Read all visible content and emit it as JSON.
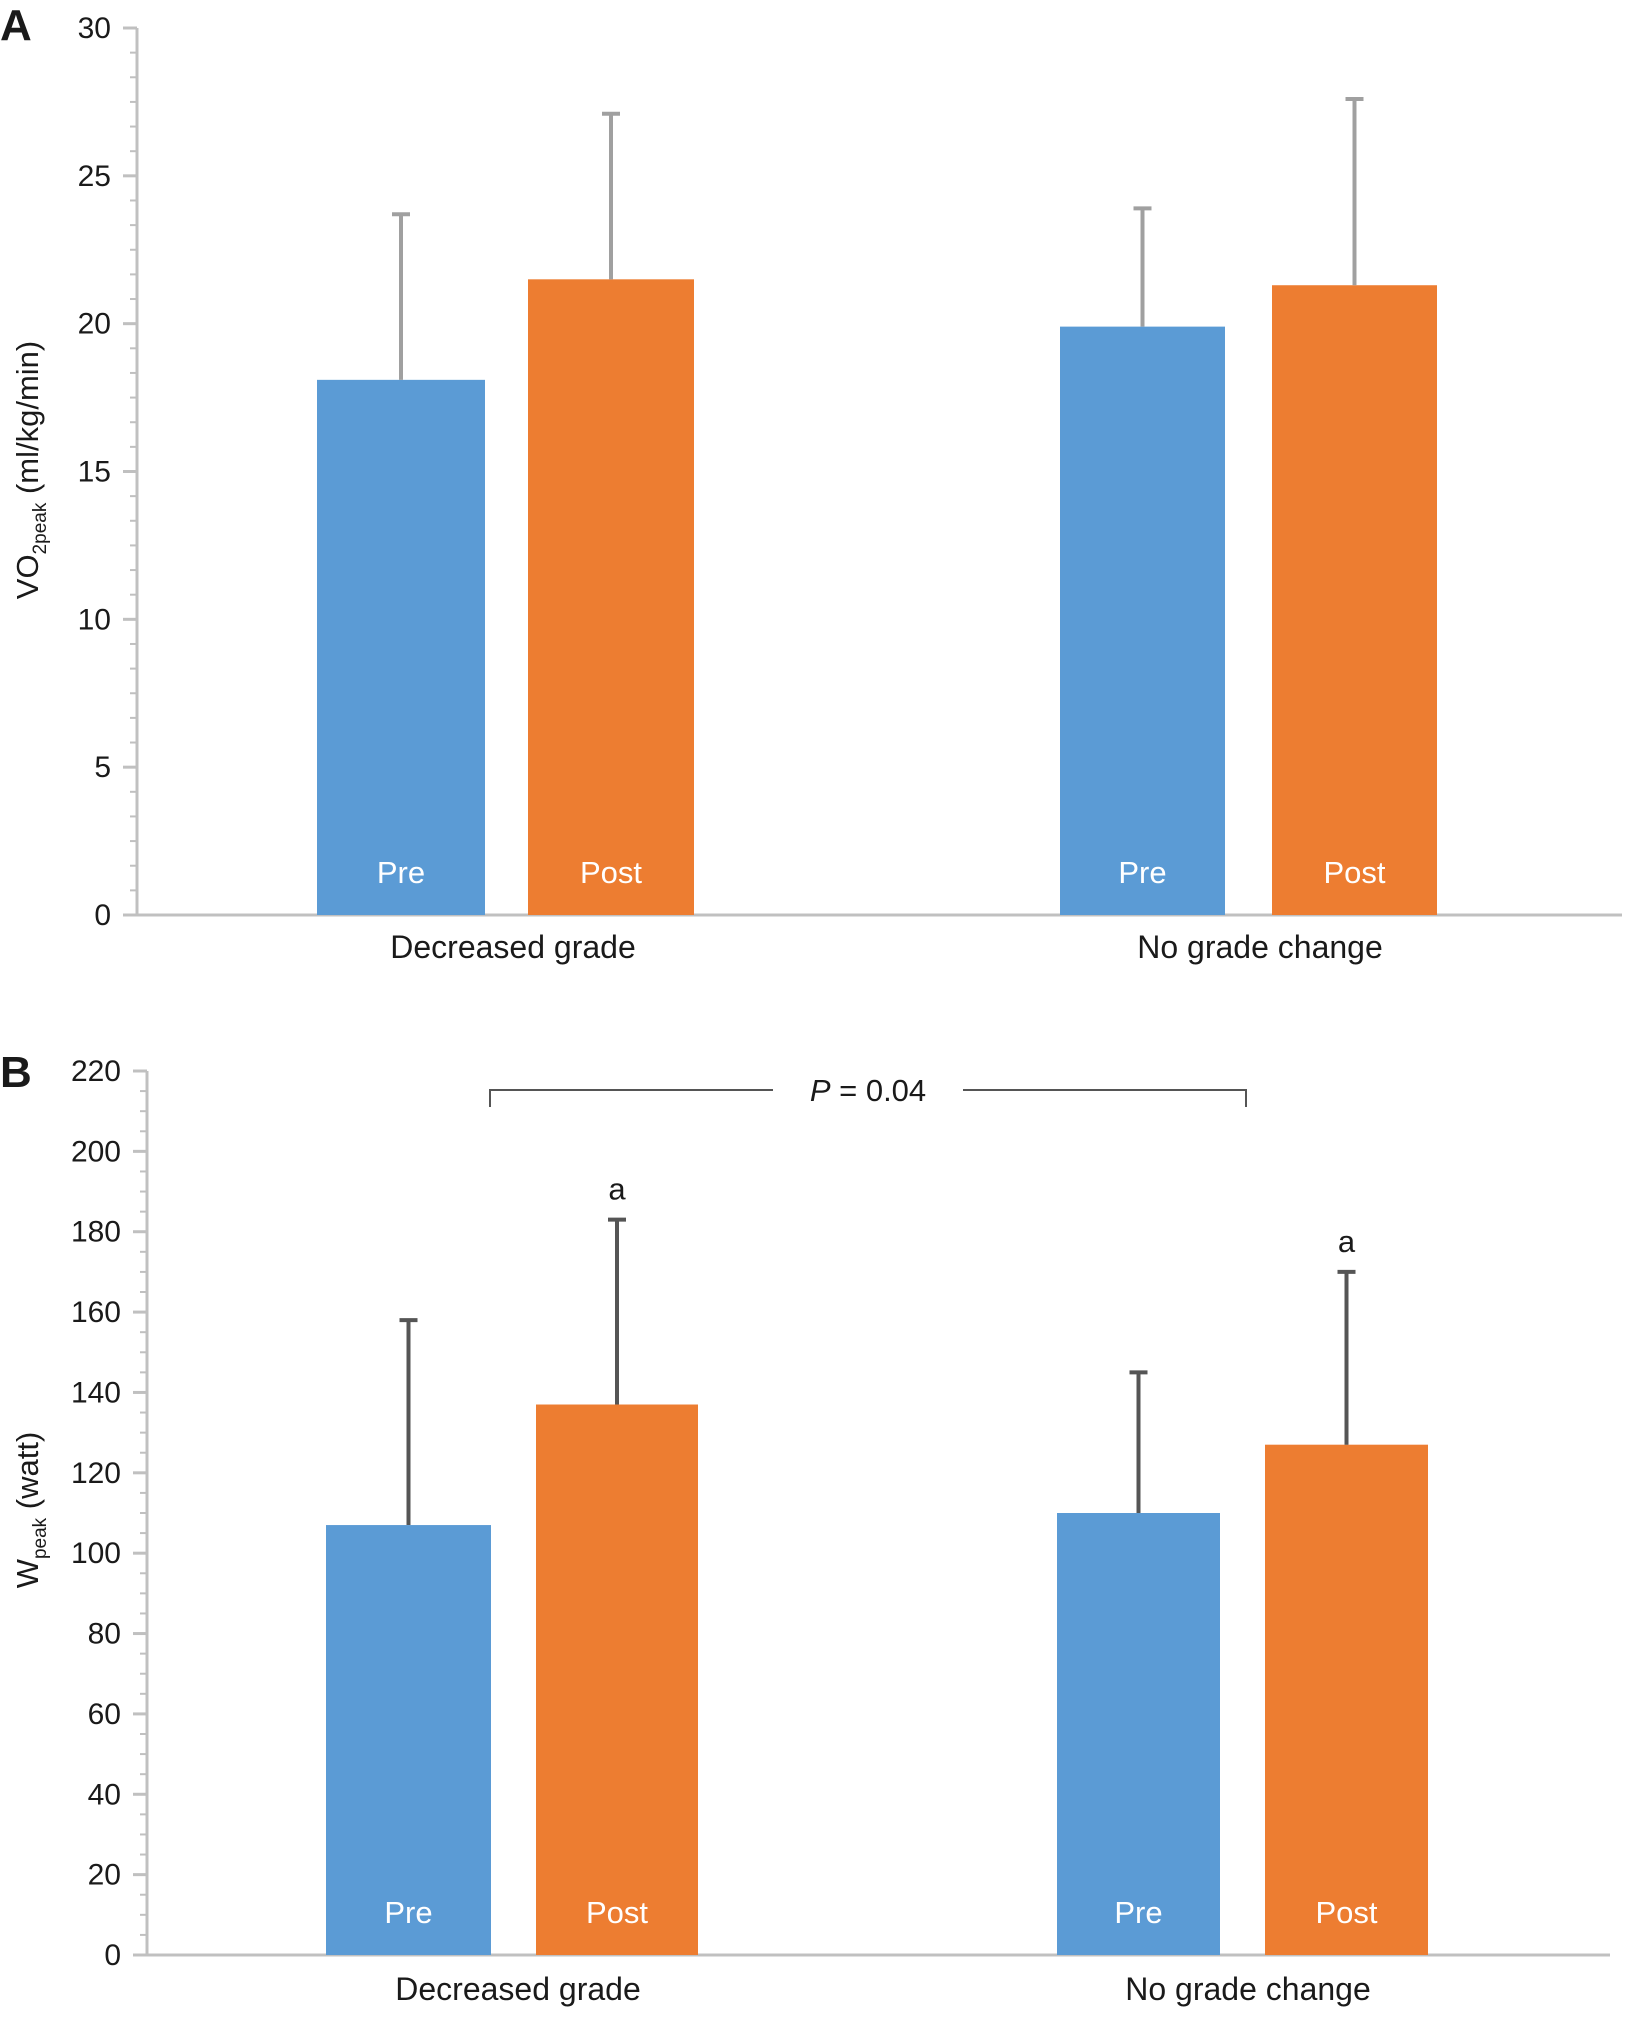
{
  "colors": {
    "pre": "#5b9bd5",
    "post": "#ed7d31",
    "axis": "#c0c0c0",
    "error_a": "#a0a0a0",
    "error_b": "#555555",
    "bracket": "#555555"
  },
  "chart_data": [
    {
      "type": "bar",
      "panel": "A",
      "ylabel_main": "VO",
      "ylabel_sub": "2peak",
      "ylabel_unit": " (ml/kg/min)",
      "categories": [
        "Decreased grade",
        "No grade change"
      ],
      "series": [
        {
          "name": "Pre",
          "values": [
            18.1,
            19.9
          ],
          "errors": [
            5.6,
            4.0
          ]
        },
        {
          "name": "Post",
          "values": [
            21.5,
            21.3
          ],
          "errors": [
            5.6,
            6.3
          ]
        }
      ],
      "ylim": [
        0,
        30
      ],
      "yticks": [
        0,
        5,
        10,
        15,
        20,
        25,
        30
      ],
      "grid": false,
      "legend": "none"
    },
    {
      "type": "bar",
      "panel": "B",
      "ylabel_main": "W",
      "ylabel_sub": "peak",
      "ylabel_unit": " (watt)",
      "categories": [
        "Decreased grade",
        "No grade change"
      ],
      "series": [
        {
          "name": "Pre",
          "values": [
            107,
            110
          ],
          "errors": [
            51,
            35
          ],
          "sig": [
            "",
            ""
          ]
        },
        {
          "name": "Post",
          "values": [
            137,
            127
          ],
          "errors": [
            46,
            43
          ],
          "sig": [
            "a",
            "a"
          ]
        }
      ],
      "ylim": [
        0,
        220
      ],
      "yticks": [
        0,
        20,
        40,
        60,
        80,
        100,
        120,
        140,
        160,
        180,
        200,
        220
      ],
      "annotation": {
        "prefix": "P",
        "text": " = 0.04"
      },
      "grid": false,
      "legend": "none"
    }
  ]
}
